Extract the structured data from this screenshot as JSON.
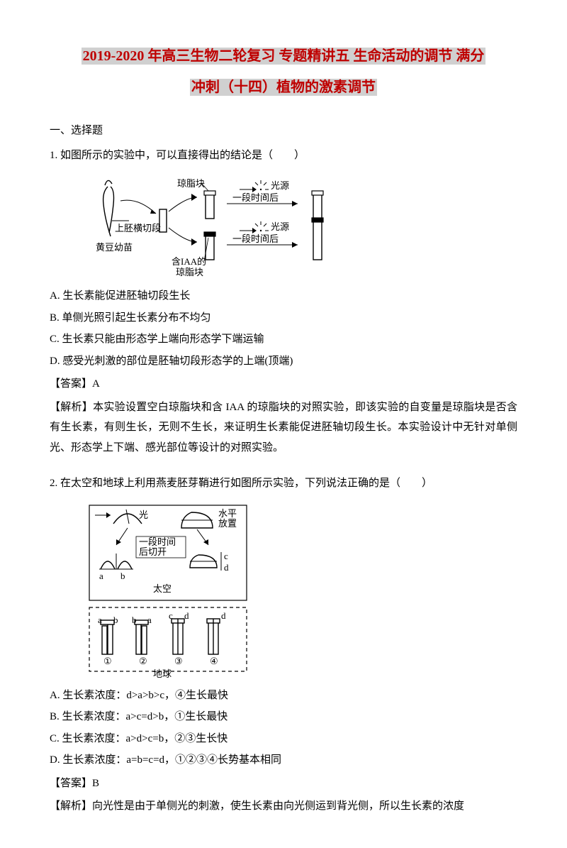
{
  "title": {
    "line1": "2019-2020 年高三生物二轮复习 专题精讲五 生命活动的调节 满分",
    "line2": "冲刺（十四）植物的激素调节",
    "color": "#bf0000",
    "highlight_bg": "#d0d0d0",
    "fontsize": 20
  },
  "section_heading": "一、选择题",
  "q1": {
    "stem": "1. 如图所示的实验中，可以直接得出的结论是（　　）",
    "figure": {
      "labels": {
        "seedling": "黄豆幼苗",
        "cut": "上胚横切段",
        "agar_plain": "琼脂块",
        "agar_iaa1": "含IAA的",
        "agar_iaa2": "琼脂块",
        "light": "光源",
        "after": "一段时间后"
      },
      "colors": {
        "stroke": "#000000",
        "fill_black": "#000000",
        "fill_white": "#ffffff"
      }
    },
    "options": {
      "A": "A. 生长素能促进胚轴切段生长",
      "B": "B. 单侧光照引起生长素分布不均匀",
      "C": "C. 生长素只能由形态学上端向形态学下端运输",
      "D": "D. 感受光刺激的部位是胚轴切段形态学的上端(顶端)"
    },
    "answer": "【答案】A",
    "explain": "【解析】本实验设置空白琼脂块和含 IAA 的琼脂块的对照实验，即该实验的自变量是琼脂块是否含有生长素，有则生长，无则不生长，来证明生长素能促进胚轴切段生长。本实验设计中无针对单侧光、形态学上下端、感光部位等设计的对照实验。"
  },
  "q2": {
    "stem": "2. 在太空和地球上利用燕麦胚芽鞘进行如图所示实验，下列说法正确的是（　　）",
    "figure": {
      "labels": {
        "light": "光",
        "horiz": "水平\n放置",
        "mid": "一段时间\n后切开",
        "space": "太空",
        "earth": "地球",
        "a": "a",
        "b": "b",
        "c": "c",
        "d": "d",
        "n1": "①",
        "n2": "②",
        "n3": "③",
        "n4": "④"
      },
      "colors": {
        "stroke": "#000000",
        "dash": "#000000"
      }
    },
    "options": {
      "A": "A. 生长素浓度：d>a>b>c，④生长最快",
      "B": "B. 生长素浓度：a>c=d>b，①生长最快",
      "C": "C. 生长素浓度：a>d>c=b，②③生长快",
      "D": "D. 生长素浓度：a=b=c=d，①②③④长势基本相同"
    },
    "answer": "【答案】B",
    "explain": "【解析】向光性是由于单侧光的刺激，使生长素由向光侧运到背光侧，所以生长素的浓度"
  },
  "body_style": {
    "fontsize": 15,
    "line_height": 1.9,
    "text_color": "#000000",
    "bg": "#ffffff"
  }
}
